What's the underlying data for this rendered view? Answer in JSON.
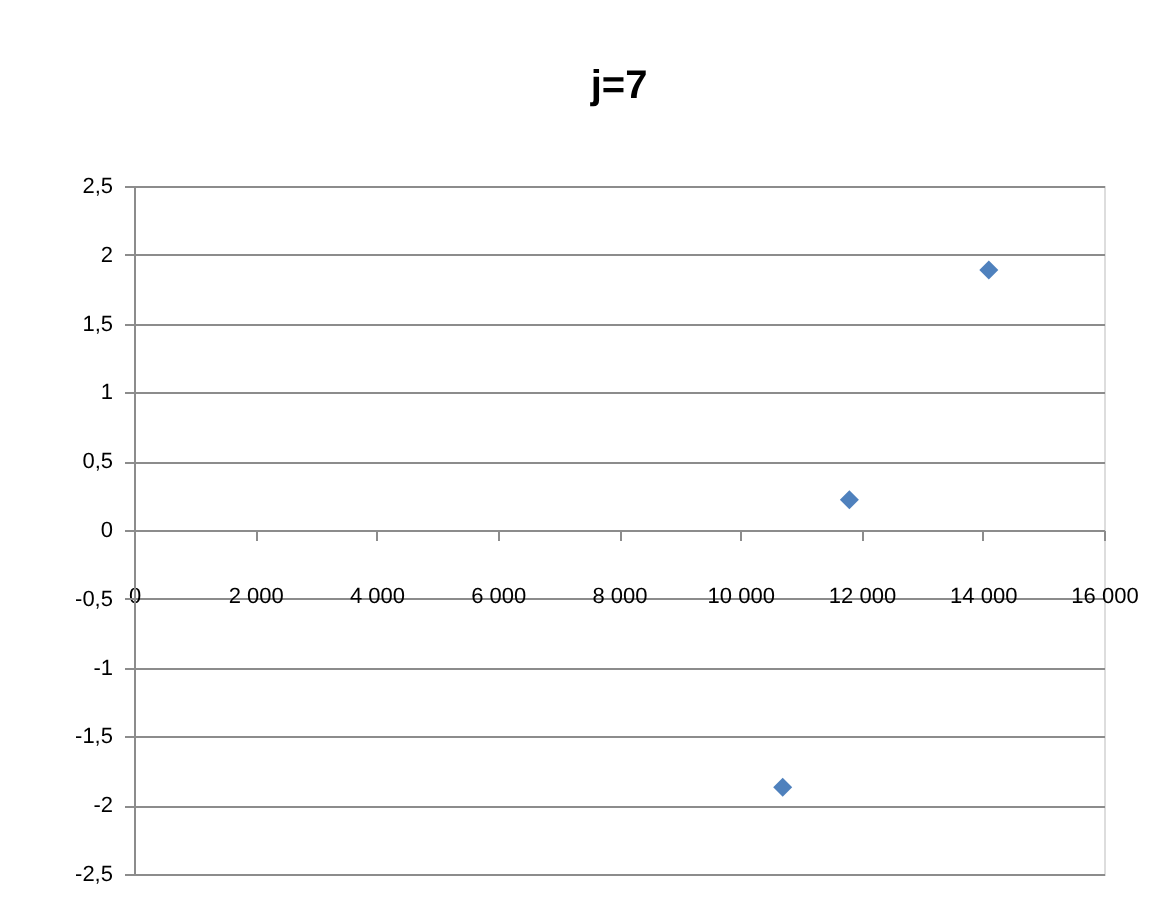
{
  "chart_data": {
    "type": "scatter",
    "title": "j=7",
    "x": [
      10700,
      11800,
      14100
    ],
    "series": [
      {
        "color": "#4f81bd",
        "values": [
          -1.87,
          0.22,
          1.89
        ]
      }
    ],
    "xlim": [
      0,
      16000
    ],
    "xticks": [
      0,
      {
        "value": 2000,
        "label": "2 000"
      },
      {
        "value": 4000,
        "label": "4 000"
      },
      {
        "value": 6000,
        "label": "6 000"
      },
      {
        "value": 8000,
        "label": "8 000"
      },
      {
        "value": 10000,
        "label": "10 000"
      },
      {
        "value": 12000,
        "label": "12 000"
      },
      {
        "value": 14000,
        "label": "14 000"
      },
      {
        "value": 16000,
        "label": "16 000"
      }
    ],
    "ylim": [
      -2.5,
      2.5
    ],
    "yticks": [
      {
        "value": -2.5,
        "label": "-2,5"
      },
      -2,
      {
        "value": -1.5,
        "label": "-1,5"
      },
      -1,
      {
        "value": -0.5,
        "label": "-0,5"
      },
      0,
      {
        "value": 0.5,
        "label": "0,5"
      },
      1,
      {
        "value": 1.5,
        "label": "1,5"
      },
      2,
      {
        "value": 2.5,
        "label": "2,5"
      }
    ],
    "grid": "y",
    "marker": "diamond"
  }
}
